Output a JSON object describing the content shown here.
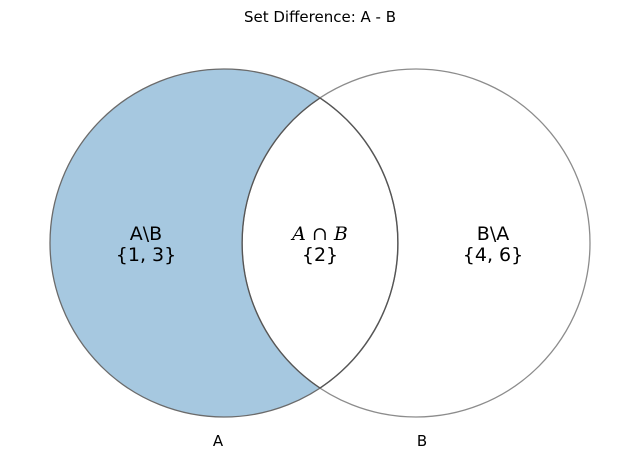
{
  "title": "Set Difference: A - B",
  "regions": {
    "a_only": {
      "label": "A\\B",
      "elements": "{1, 3}"
    },
    "intersection": {
      "label_left": "A",
      "label_op": " ∩ ",
      "label_right": "B",
      "elements": "{2}"
    },
    "b_only": {
      "label": "B\\A",
      "elements": "{4, 6}"
    }
  },
  "sets": {
    "a_label": "A",
    "b_label": "B"
  },
  "colors": {
    "highlight_fill": "#a6c8e0",
    "outline_a": "#6b6b6b",
    "outline_b": "#8c8c8c",
    "background": "#ffffff"
  }
}
